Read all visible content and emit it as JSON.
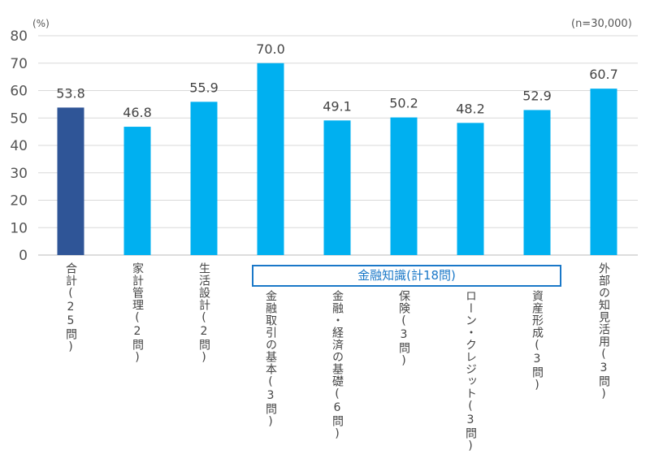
{
  "chart_data": {
    "type": "bar",
    "ylabel": "(%)",
    "note": "(n=30,000)",
    "ylim": [
      0,
      80
    ],
    "yticks": [
      0,
      10,
      20,
      30,
      40,
      50,
      60,
      70,
      80
    ],
    "grid": true,
    "categories": [
      "合計(25問)",
      "家計管理(2問)",
      "生活設計(2問)",
      "金融取引の基本(3問)",
      "金融・経済の基礎(6問)",
      "保険(3問)",
      "ローン・クレジット(3問)",
      "資産形成(3問)",
      "外部の知見活用(3問)"
    ],
    "values": [
      53.8,
      46.8,
      55.9,
      70.0,
      49.1,
      50.2,
      48.2,
      52.9,
      60.7
    ],
    "value_labels": [
      "53.8",
      "46.8",
      "55.9",
      "70.0",
      "49.1",
      "50.2",
      "48.2",
      "52.9",
      "60.7"
    ],
    "group_label": "金融知識(計18問)",
    "colors": {
      "total": "#2f5597",
      "default": "#00b0f0",
      "group": "#1a78c8"
    }
  }
}
